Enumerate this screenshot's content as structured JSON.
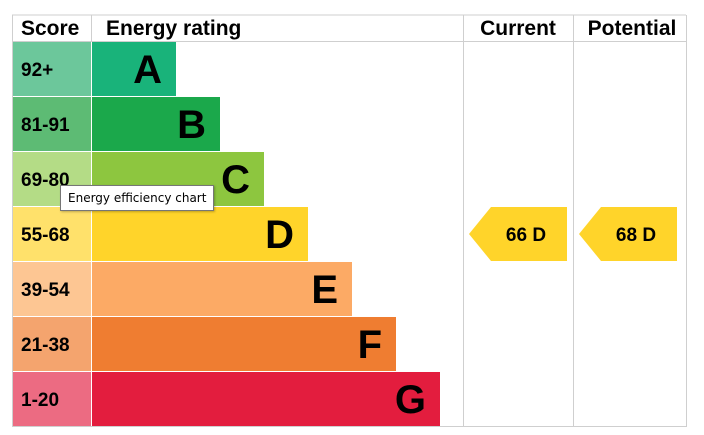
{
  "chart_data": {
    "type": "bar",
    "headers": {
      "score": "Score",
      "rating": "Energy rating",
      "current": "Current",
      "potential": "Potential"
    },
    "bands": [
      {
        "score": "92+",
        "letter": "A",
        "color": "#19b37a",
        "score_color": "#6cc79b"
      },
      {
        "score": "81-91",
        "letter": "B",
        "color": "#1ba84b",
        "score_color": "#5dbb74"
      },
      {
        "score": "69-80",
        "letter": "C",
        "color": "#8dc63f",
        "score_color": "#b4dc86"
      },
      {
        "score": "55-68",
        "letter": "D",
        "color": "#ffd42a",
        "score_color": "#ffe16b"
      },
      {
        "score": "39-54",
        "letter": "E",
        "color": "#fcaa65",
        "score_color": "#fdc693"
      },
      {
        "score": "21-38",
        "letter": "F",
        "color": "#ef7d31",
        "score_color": "#f4a46e"
      },
      {
        "score": "1-20",
        "letter": "G",
        "color": "#e31d3e",
        "score_color": "#ec6b82"
      }
    ],
    "current": {
      "value": 66,
      "band": "D",
      "label": "66  D"
    },
    "potential": {
      "value": 68,
      "band": "D",
      "label": "68  D"
    },
    "indicator_color": "#ffd42a"
  },
  "tooltip": "Energy efficiency chart"
}
